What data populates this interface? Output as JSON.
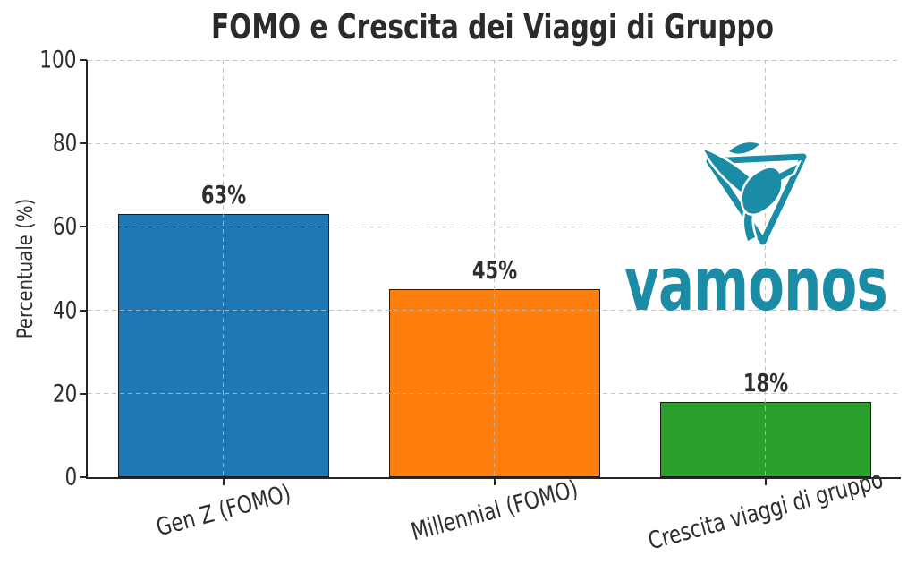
{
  "chart_data": {
    "type": "bar",
    "title": "FOMO e Crescita dei Viaggi di Gruppo",
    "xlabel": "",
    "ylabel": "Percentuale (%)",
    "categories": [
      "Gen Z (FOMO)",
      "Millennial (FOMO)",
      "Crescita viaggi di gruppo"
    ],
    "values": [
      63,
      45,
      18
    ],
    "value_labels": [
      "63%",
      "45%",
      "18%"
    ],
    "bar_colors": [
      "#1f77b4",
      "#ff7f0e",
      "#2ca02c"
    ],
    "bar_edge_color": "#1a1a1a",
    "ylim": [
      0,
      100
    ],
    "yticks": [
      0,
      20,
      40,
      60,
      80,
      100
    ],
    "grid": "dashed gray, horizontal and vertical at bar centers, drawn above bars",
    "xtick_rotation_deg": 15,
    "legend": "none"
  },
  "logo": {
    "wordmark": "vamonos",
    "icon": "hummingbird-in-triangle-icon",
    "color": "#1b8ca6"
  }
}
